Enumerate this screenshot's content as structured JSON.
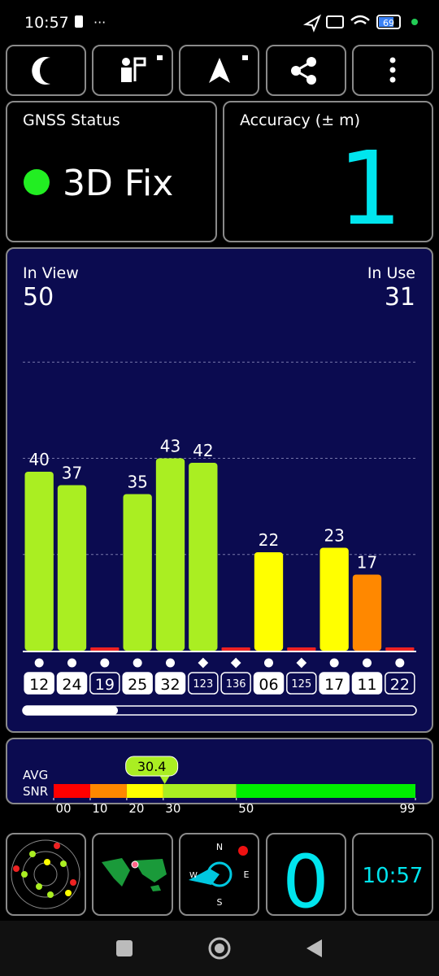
{
  "status_bar": {
    "time": "10:57",
    "battery": "69"
  },
  "gnss_status": {
    "label": "GNSS Status",
    "value": "3D Fix"
  },
  "accuracy": {
    "label": "Accuracy (± m)",
    "value": "1"
  },
  "in_view": {
    "label": "In View",
    "value": "50"
  },
  "in_use": {
    "label": "In Use",
    "value": "31"
  },
  "chart_data": [
    {
      "type": "bar",
      "categories": [
        "12",
        "24",
        "19",
        "25",
        "32",
        "123",
        "136",
        "06",
        "125",
        "17",
        "11",
        "22"
      ],
      "values": [
        40,
        37,
        0,
        35,
        43,
        42,
        0,
        22,
        0,
        23,
        17,
        0
      ],
      "colors": [
        "#aaee22",
        "#aaee22",
        "#ee2222",
        "#aaee22",
        "#aaee22",
        "#aaee22",
        "#ee2222",
        "#ffff00",
        "#ee2222",
        "#ffff00",
        "#ff8800",
        "#ee2222"
      ],
      "markers": [
        "circle",
        "circle",
        "circle",
        "circle",
        "circle",
        "diamond",
        "diamond",
        "circle",
        "diamond",
        "circle",
        "circle",
        "circle"
      ],
      "used": [
        true,
        true,
        false,
        true,
        true,
        false,
        false,
        true,
        false,
        true,
        true,
        false
      ],
      "ylim": [
        0,
        86
      ],
      "yticks": [
        21.5,
        43,
        64.5
      ],
      "grid": true
    },
    {
      "type": "snr",
      "labels": [
        "AVG",
        "SNR"
      ],
      "value": 30.4,
      "xlim": [
        0,
        99
      ],
      "xticks": [
        {
          "value": 0,
          "label": "00"
        },
        10,
        20,
        30,
        50,
        99
      ],
      "band_colors": [
        "#ff0000",
        "#ff8800",
        "#ffff00",
        "#aaee22",
        "#00ee00"
      ]
    }
  ],
  "tiles": {
    "compass": {
      "n": "N",
      "e": "E",
      "s": "S",
      "w": "W"
    },
    "count": "0",
    "clock": "10:57"
  }
}
